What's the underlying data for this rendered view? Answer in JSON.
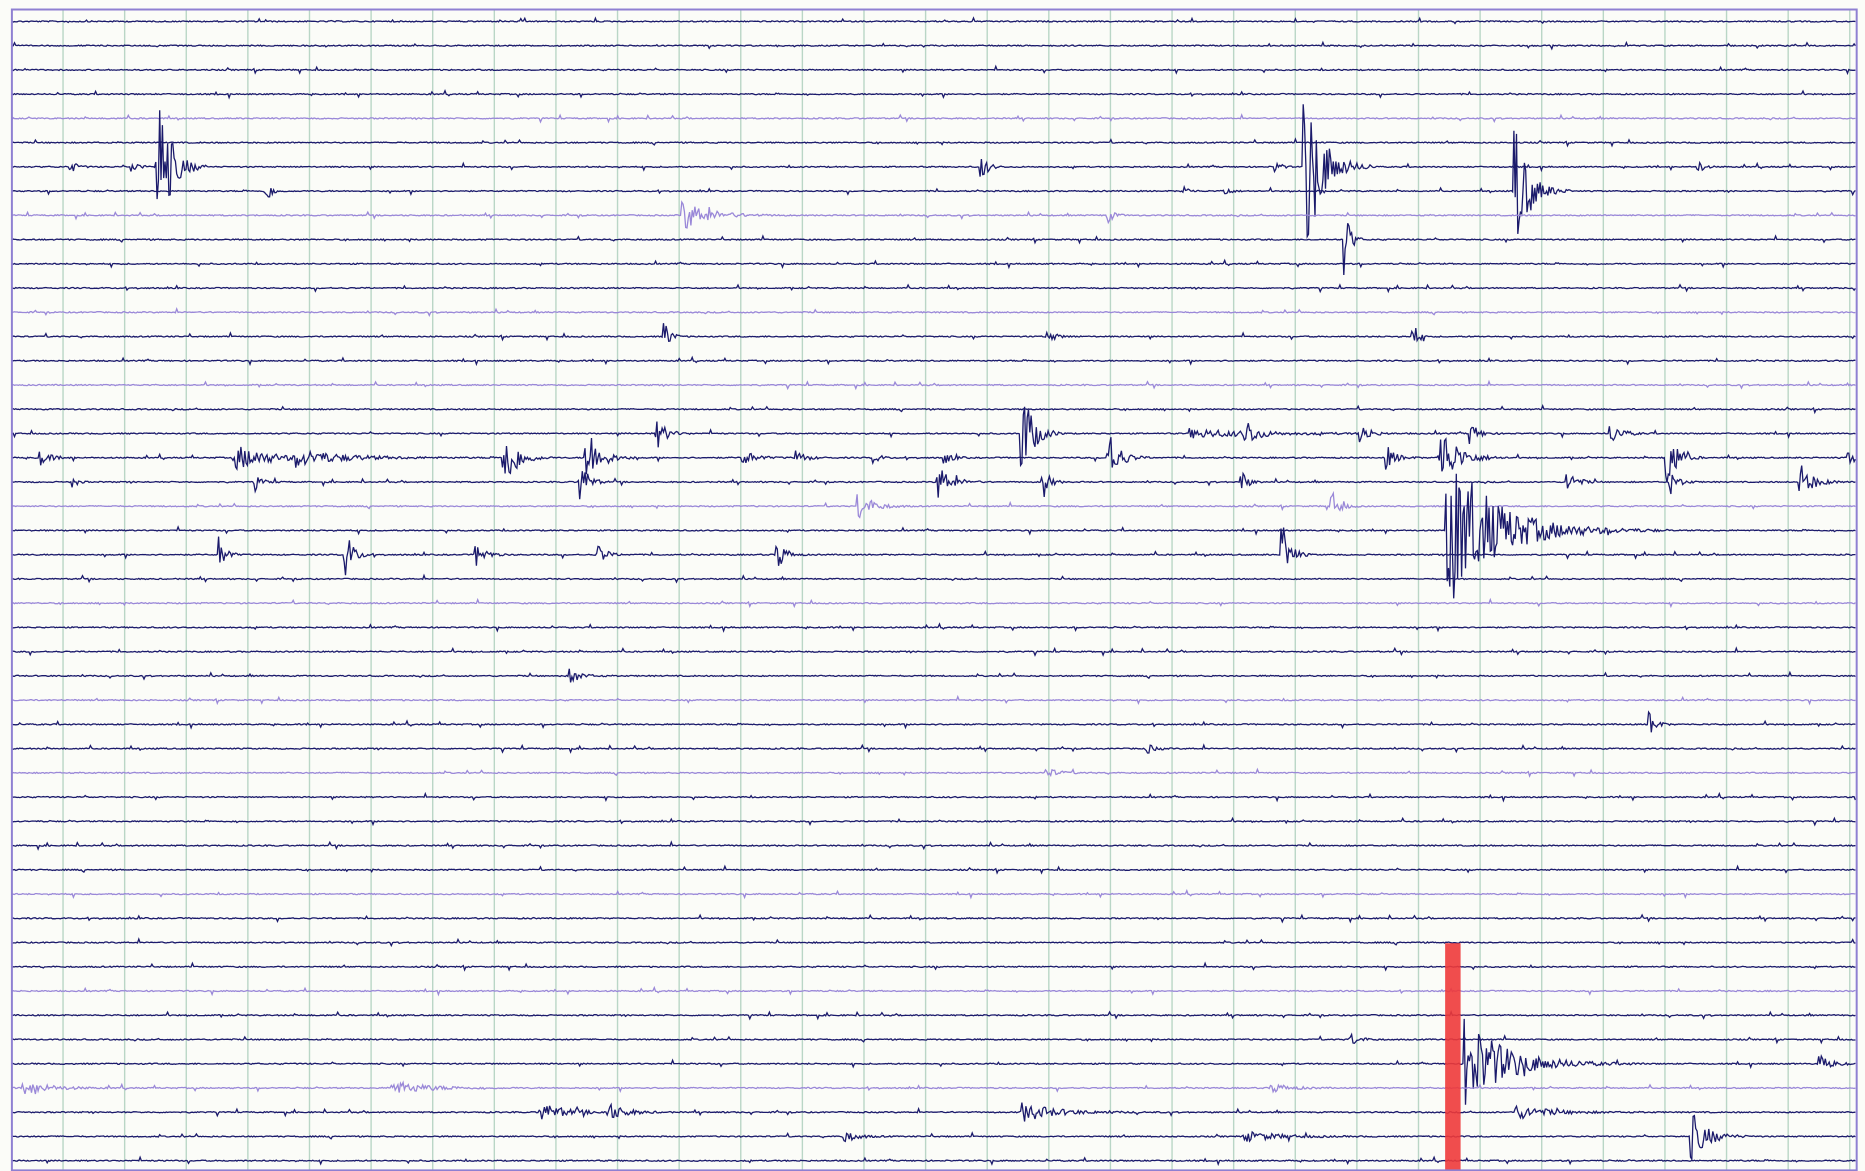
{
  "helicorder": {
    "trace_colors": [
      "#1b1a6b",
      "#9a88d8"
    ],
    "marker_color": "#ee3a3a",
    "grid_color": "#b9d6c6",
    "frame_color": "#8f80d2",
    "background": "#fbfcf8"
  }
}
